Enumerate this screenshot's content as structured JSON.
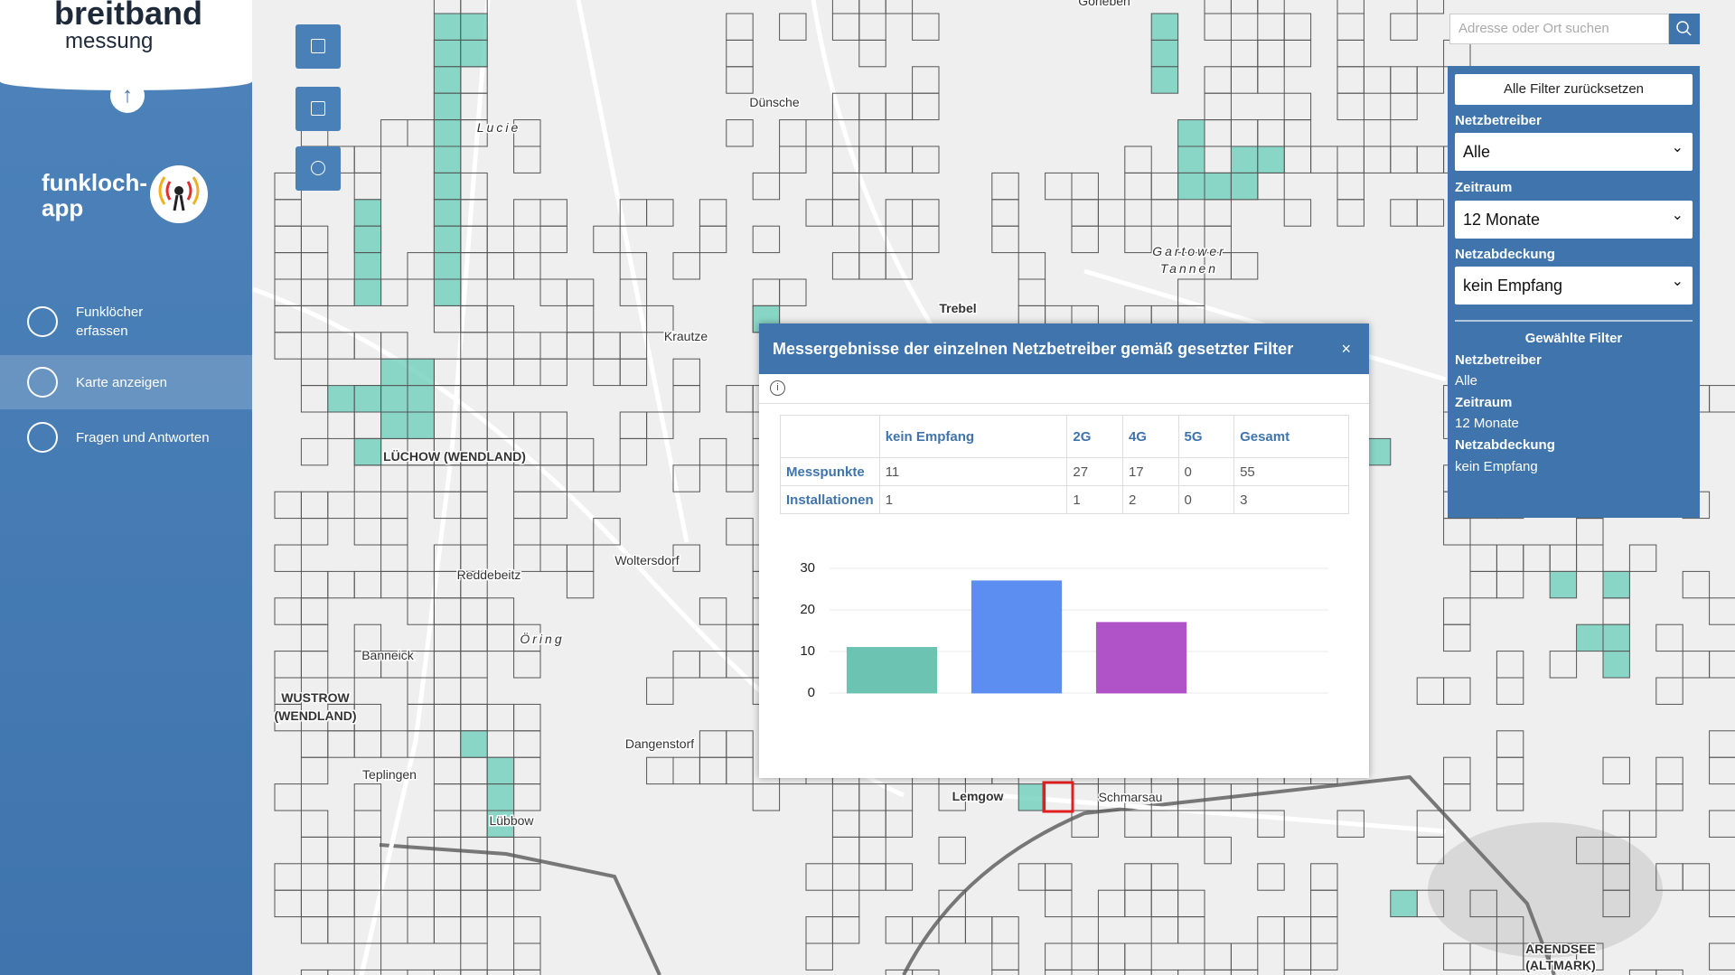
{
  "logo": {
    "line1": "breitband",
    "line2": "messung"
  },
  "app_name": {
    "line1": "funkloch-",
    "line2": "app"
  },
  "nav": [
    {
      "label": "Funklöcher erfassen"
    },
    {
      "label": "Karte anzeigen"
    },
    {
      "label": "Fragen und Antworten"
    }
  ],
  "search": {
    "placeholder": "Adresse oder Ort suchen"
  },
  "filters": {
    "reset": "Alle Filter zurücksetzen",
    "fields": [
      {
        "label": "Netzbetreiber",
        "value": "Alle"
      },
      {
        "label": "Zeitraum",
        "value": "12 Monate"
      },
      {
        "label": "Netzabdeckung",
        "value": "kein Empfang"
      }
    ],
    "summary_title": "Gewählte Filter",
    "summary": [
      {
        "label": "Netzbetreiber",
        "value": "Alle"
      },
      {
        "label": "Zeitraum",
        "value": "12 Monate"
      },
      {
        "label": "Netzabdeckung",
        "value": "kein Empfang"
      }
    ]
  },
  "popup": {
    "title": "Messergebnisse der einzelnen Netzbetreiber gemäß gesetzter Filter",
    "close": "×",
    "table": {
      "columns": [
        "kein Empfang",
        "2G",
        "4G",
        "5G",
        "Gesamt"
      ],
      "rows": [
        {
          "label": "Messpunkte",
          "cells": [
            11,
            27,
            17,
            0,
            55
          ]
        },
        {
          "label": "Installationen",
          "cells": [
            1,
            1,
            2,
            0,
            3
          ]
        }
      ]
    }
  },
  "chart_data": {
    "type": "bar",
    "categories": [
      null,
      null,
      null,
      null
    ],
    "values": [
      11,
      27,
      17,
      0
    ],
    "colors": [
      "#6cc3b1",
      "#5b8ef0",
      "#b052c8",
      "#e0893a"
    ],
    "ylim": [
      0,
      30
    ],
    "yticks": [
      0,
      10,
      20,
      30
    ],
    "grid": true
  },
  "map_labels": [
    "Gorleben",
    "Lucie",
    "Dünsche",
    "Gartower",
    "Tannen",
    "Trebel",
    "Krautze",
    "LÜCHOW (WENDLAND)",
    "Woltersdorf",
    "Reddebeitz",
    "Öring",
    "WUSTROW",
    "(WENDLAND)",
    "Teplingen",
    "Lübbow",
    "Lemgow",
    "Schmarsau",
    "Dangenstorf",
    "Banneick",
    "ARENDSEE",
    "(ALTMARK)"
  ]
}
